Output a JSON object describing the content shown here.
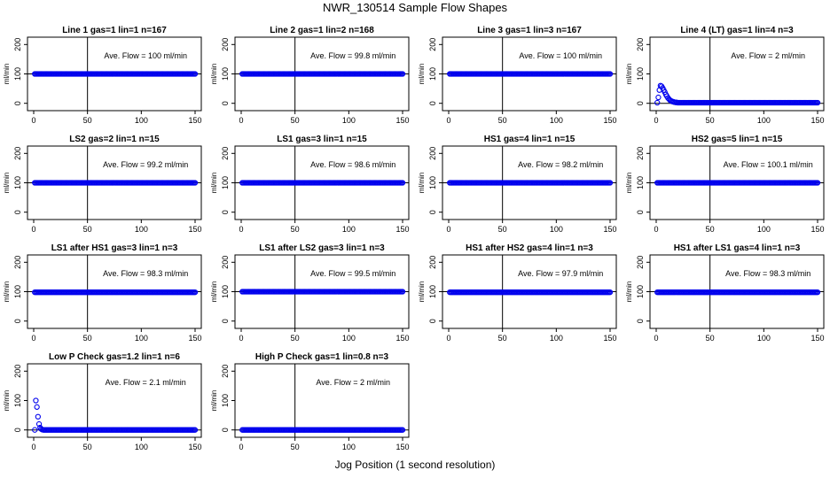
{
  "page": {
    "title": "NWR_130514  Sample Flow Shapes",
    "xlabel": "Jog Position (1 second resolution)"
  },
  "colors": {
    "points": "#0000ee",
    "axis": "#000000"
  },
  "chart_data": [
    {
      "type": "scatter",
      "title": "Line 1 gas=1 lin=1 n=167",
      "annotation": "Ave. Flow = 100  ml/min",
      "ylabel": "ml/min",
      "xlim": [
        0,
        150
      ],
      "ylim": [
        -25,
        225
      ],
      "xticks": [
        0,
        50,
        100,
        150
      ],
      "yticks": [
        0,
        100,
        200
      ],
      "vline": 50,
      "hline": 100,
      "series": [
        {
          "shape": "flat",
          "x_start": 1,
          "x_end": 150,
          "level": 100
        }
      ]
    },
    {
      "type": "scatter",
      "title": "Line 2 gas=1 lin=2 n=168",
      "annotation": "Ave. Flow = 99.8  ml/min",
      "ylabel": "ml/min",
      "xlim": [
        0,
        150
      ],
      "ylim": [
        -25,
        225
      ],
      "xticks": [
        0,
        50,
        100,
        150
      ],
      "yticks": [
        0,
        100,
        200
      ],
      "vline": 50,
      "hline": 100,
      "series": [
        {
          "shape": "flat",
          "x_start": 1,
          "x_end": 150,
          "level": 100
        }
      ]
    },
    {
      "type": "scatter",
      "title": "Line 3 gas=1 lin=3 n=167",
      "annotation": "Ave. Flow = 100  ml/min",
      "ylabel": "ml/min",
      "xlim": [
        0,
        150
      ],
      "ylim": [
        -25,
        225
      ],
      "xticks": [
        0,
        50,
        100,
        150
      ],
      "yticks": [
        0,
        100,
        200
      ],
      "vline": 50,
      "hline": 100,
      "series": [
        {
          "shape": "flat",
          "x_start": 1,
          "x_end": 150,
          "level": 100
        }
      ]
    },
    {
      "type": "scatter",
      "title": "Line 4 (LT) gas=1 lin=4 n=3",
      "annotation": "Ave. Flow = 2  ml/min",
      "ylabel": "ml/min",
      "xlim": [
        0,
        150
      ],
      "ylim": [
        -25,
        225
      ],
      "xticks": [
        0,
        50,
        100,
        150
      ],
      "yticks": [
        0,
        100,
        200
      ],
      "vline": 50,
      "hline": 0,
      "series": [
        {
          "shape": "hump",
          "x_start": 1,
          "x_end": 150,
          "level": 2,
          "points": [
            [
              1,
              2
            ],
            [
              2,
              20
            ],
            [
              3,
              45
            ],
            [
              4,
              60
            ],
            [
              5,
              58
            ],
            [
              6,
              52
            ],
            [
              7,
              45
            ],
            [
              8,
              38
            ],
            [
              9,
              30
            ],
            [
              10,
              24
            ],
            [
              11,
              18
            ],
            [
              12,
              14
            ],
            [
              13,
              10
            ],
            [
              14,
              8
            ],
            [
              15,
              6
            ],
            [
              16,
              5
            ],
            [
              17,
              4
            ],
            [
              18,
              3
            ],
            [
              19,
              3
            ]
          ]
        }
      ]
    },
    {
      "type": "scatter",
      "title": "LS2 gas=2 lin=1 n=15",
      "annotation": "Ave. Flow = 99.2  ml/min",
      "ylabel": "ml/min",
      "xlim": [
        0,
        150
      ],
      "ylim": [
        -25,
        225
      ],
      "xticks": [
        0,
        50,
        100,
        150
      ],
      "yticks": [
        0,
        100,
        200
      ],
      "vline": 50,
      "hline": 100,
      "series": [
        {
          "shape": "flat",
          "x_start": 1,
          "x_end": 150,
          "level": 100
        }
      ]
    },
    {
      "type": "scatter",
      "title": "LS1 gas=3 lin=1 n=15",
      "annotation": "Ave. Flow = 98.6  ml/min",
      "ylabel": "ml/min",
      "xlim": [
        0,
        150
      ],
      "ylim": [
        -25,
        225
      ],
      "xticks": [
        0,
        50,
        100,
        150
      ],
      "yticks": [
        0,
        100,
        200
      ],
      "vline": 50,
      "hline": 100,
      "series": [
        {
          "shape": "flat",
          "x_start": 1,
          "x_end": 150,
          "level": 100
        }
      ]
    },
    {
      "type": "scatter",
      "title": "HS1 gas=4 lin=1 n=15",
      "annotation": "Ave. Flow = 98.2  ml/min",
      "ylabel": "ml/min",
      "xlim": [
        0,
        150
      ],
      "ylim": [
        -25,
        225
      ],
      "xticks": [
        0,
        50,
        100,
        150
      ],
      "yticks": [
        0,
        100,
        200
      ],
      "vline": 50,
      "hline": 100,
      "series": [
        {
          "shape": "flat",
          "x_start": 1,
          "x_end": 150,
          "level": 100
        }
      ]
    },
    {
      "type": "scatter",
      "title": "HS2 gas=5 lin=1 n=15",
      "annotation": "Ave. Flow = 100.1  ml/min",
      "ylabel": "ml/min",
      "xlim": [
        0,
        150
      ],
      "ylim": [
        -25,
        225
      ],
      "xticks": [
        0,
        50,
        100,
        150
      ],
      "yticks": [
        0,
        100,
        200
      ],
      "vline": 50,
      "hline": 100,
      "series": [
        {
          "shape": "flat",
          "x_start": 1,
          "x_end": 150,
          "level": 100
        }
      ]
    },
    {
      "type": "scatter",
      "title": "LS1 after HS1 gas=3 lin=1 n=3",
      "annotation": "Ave. Flow = 98.3  ml/min",
      "ylabel": "ml/min",
      "xlim": [
        0,
        150
      ],
      "ylim": [
        -25,
        225
      ],
      "xticks": [
        0,
        50,
        100,
        150
      ],
      "yticks": [
        0,
        100,
        200
      ],
      "vline": 50,
      "hline": 100,
      "series": [
        {
          "shape": "flat",
          "x_start": 1,
          "x_end": 150,
          "level": 98
        }
      ]
    },
    {
      "type": "scatter",
      "title": "LS1 after LS2 gas=3 lin=1 n=3",
      "annotation": "Ave. Flow = 99.5  ml/min",
      "ylabel": "ml/min",
      "xlim": [
        0,
        150
      ],
      "ylim": [
        -25,
        225
      ],
      "xticks": [
        0,
        50,
        100,
        150
      ],
      "yticks": [
        0,
        100,
        200
      ],
      "vline": 50,
      "hline": 100,
      "series": [
        {
          "shape": "flat",
          "x_start": 1,
          "x_end": 150,
          "level": 100
        }
      ]
    },
    {
      "type": "scatter",
      "title": "HS1 after HS2 gas=4 lin=1 n=3",
      "annotation": "Ave. Flow = 97.9  ml/min",
      "ylabel": "ml/min",
      "xlim": [
        0,
        150
      ],
      "ylim": [
        -25,
        225
      ],
      "xticks": [
        0,
        50,
        100,
        150
      ],
      "yticks": [
        0,
        100,
        200
      ],
      "vline": 50,
      "hline": 100,
      "series": [
        {
          "shape": "flat",
          "x_start": 1,
          "x_end": 150,
          "level": 98
        }
      ]
    },
    {
      "type": "scatter",
      "title": "HS1 after LS1 gas=4 lin=1 n=3",
      "annotation": "Ave. Flow = 98.3  ml/min",
      "ylabel": "ml/min",
      "xlim": [
        0,
        150
      ],
      "ylim": [
        -25,
        225
      ],
      "xticks": [
        0,
        50,
        100,
        150
      ],
      "yticks": [
        0,
        100,
        200
      ],
      "vline": 50,
      "hline": 100,
      "series": [
        {
          "shape": "flat",
          "x_start": 1,
          "x_end": 150,
          "level": 98
        }
      ]
    },
    {
      "type": "scatter",
      "title": "Low P Check gas=1.2 lin=1 n=6",
      "annotation": "Ave. Flow = 2.1  ml/min",
      "ylabel": "ml/min",
      "xlim": [
        0,
        150
      ],
      "ylim": [
        -25,
        225
      ],
      "xticks": [
        0,
        50,
        100,
        150
      ],
      "yticks": [
        0,
        100,
        200
      ],
      "vline": 50,
      "hline": 0,
      "series": [
        {
          "shape": "decay",
          "x_start": 1,
          "x_end": 150,
          "level": 0,
          "points": [
            [
              2,
              100
            ],
            [
              3,
              78
            ],
            [
              4,
              45
            ],
            [
              5,
              20
            ],
            [
              6,
              8
            ],
            [
              7,
              3
            ],
            [
              8,
              1
            ]
          ]
        }
      ]
    },
    {
      "type": "scatter",
      "title": "High P Check gas=1 lin=0.8 n=3",
      "annotation": "Ave. Flow = 2  ml/min",
      "ylabel": "ml/min",
      "xlim": [
        0,
        150
      ],
      "ylim": [
        -25,
        225
      ],
      "xticks": [
        0,
        50,
        100,
        150
      ],
      "yticks": [
        0,
        100,
        200
      ],
      "vline": 50,
      "hline": 0,
      "series": [
        {
          "shape": "flat",
          "x_start": 1,
          "x_end": 150,
          "level": 0
        }
      ]
    }
  ]
}
